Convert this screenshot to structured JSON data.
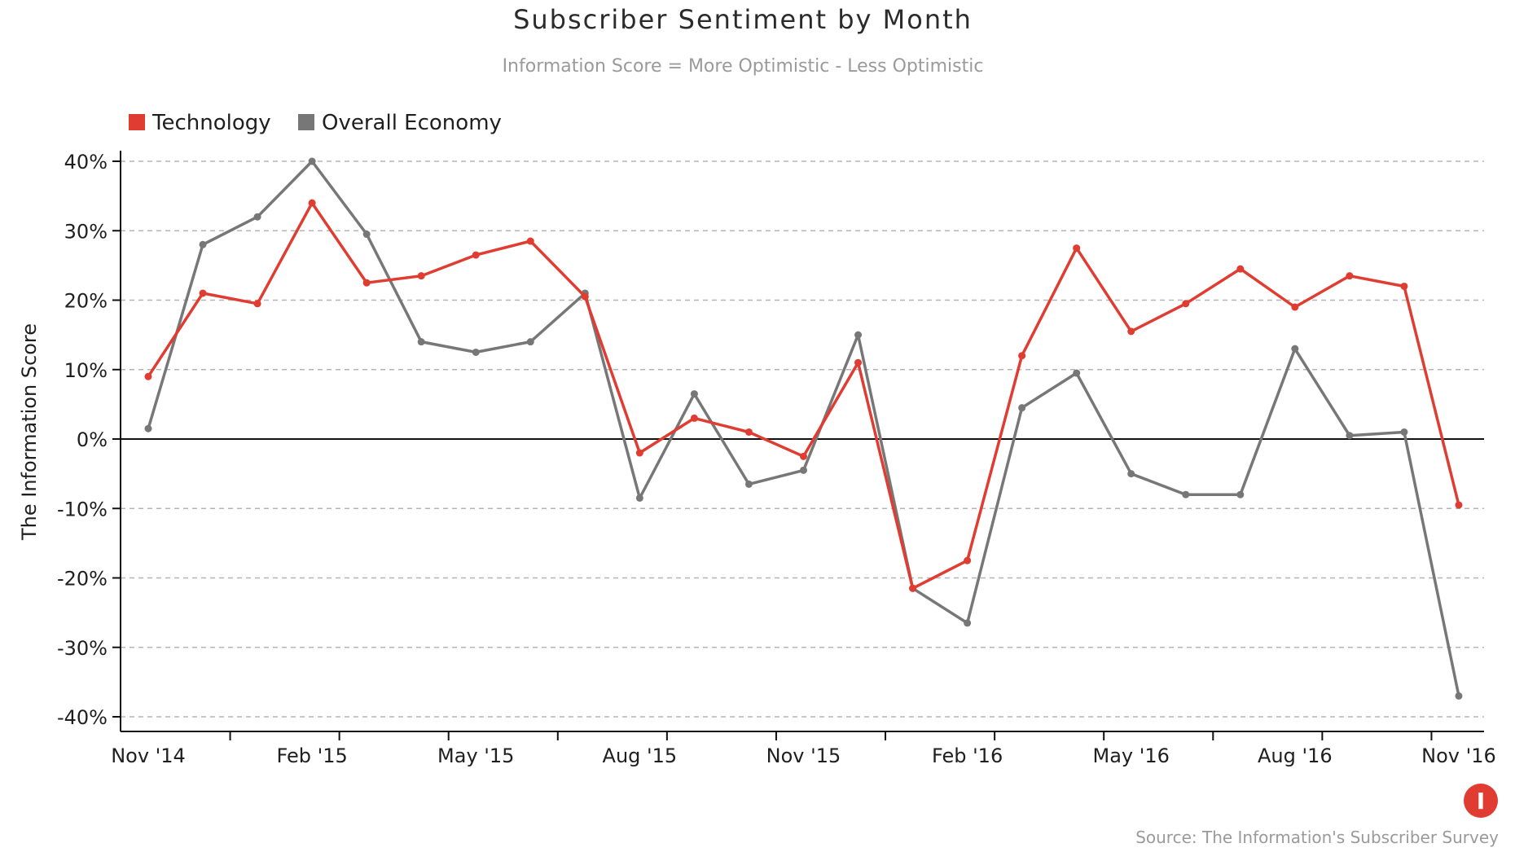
{
  "chart_data": {
    "type": "line",
    "title": "Subscriber Sentiment by Month",
    "subtitle": "Information Score = More Optimistic - Less Optimistic",
    "ylabel": "The Information Score",
    "xlabel": "",
    "ylim": [
      -40,
      40
    ],
    "y_ticks": [
      40,
      30,
      20,
      10,
      0,
      -10,
      -20,
      -30,
      -40
    ],
    "y_tick_labels": [
      "40%",
      "30%",
      "20%",
      "10%",
      "0%",
      "-10%",
      "-20%",
      "-30%",
      "-40%"
    ],
    "x_tick_labels": [
      "Nov '14",
      "Feb '15",
      "May '15",
      "Aug '15",
      "Nov '15",
      "Feb '16",
      "May '16",
      "Aug '16",
      "Nov '16"
    ],
    "grid": true,
    "legend_position": "top-left",
    "x": [
      "Nov '14",
      "Dec '14",
      "Jan '15",
      "Feb '15",
      "Mar '15",
      "Apr '15",
      "May '15",
      "Jun '15",
      "Jul '15",
      "Aug '15",
      "Sep '15",
      "Oct '15",
      "Nov '15",
      "Dec '15",
      "Jan '16",
      "Feb '16",
      "Mar '16",
      "Apr '16",
      "May '16",
      "Jun '16",
      "Jul '16",
      "Aug '16",
      "Sep '16",
      "Oct '16",
      "Nov '16"
    ],
    "series": [
      {
        "name": "Technology",
        "color": "#e03c31",
        "values": [
          9,
          21,
          19.5,
          34,
          22.5,
          23.5,
          26.5,
          28.5,
          20.5,
          -2,
          3,
          1,
          -2.5,
          11,
          -21.5,
          -17.5,
          12,
          27.5,
          15.5,
          19.5,
          24.5,
          19,
          23.5,
          22,
          -9.5
        ]
      },
      {
        "name": "Overall Economy",
        "color": "#777777",
        "values": [
          1.5,
          28,
          32,
          40,
          29.5,
          14,
          12.5,
          14,
          21,
          -8.5,
          6.5,
          -6.5,
          -4.5,
          15,
          -21.5,
          -26.5,
          4.5,
          9.5,
          -5,
          -8,
          -8,
          13,
          0.5,
          1,
          -37
        ]
      }
    ]
  },
  "source_text": "Source: The Information's Subscriber Survey",
  "brand_mark": {
    "glyph": "I",
    "color": "#e03c31",
    "icon": "the-information-logo-icon"
  }
}
